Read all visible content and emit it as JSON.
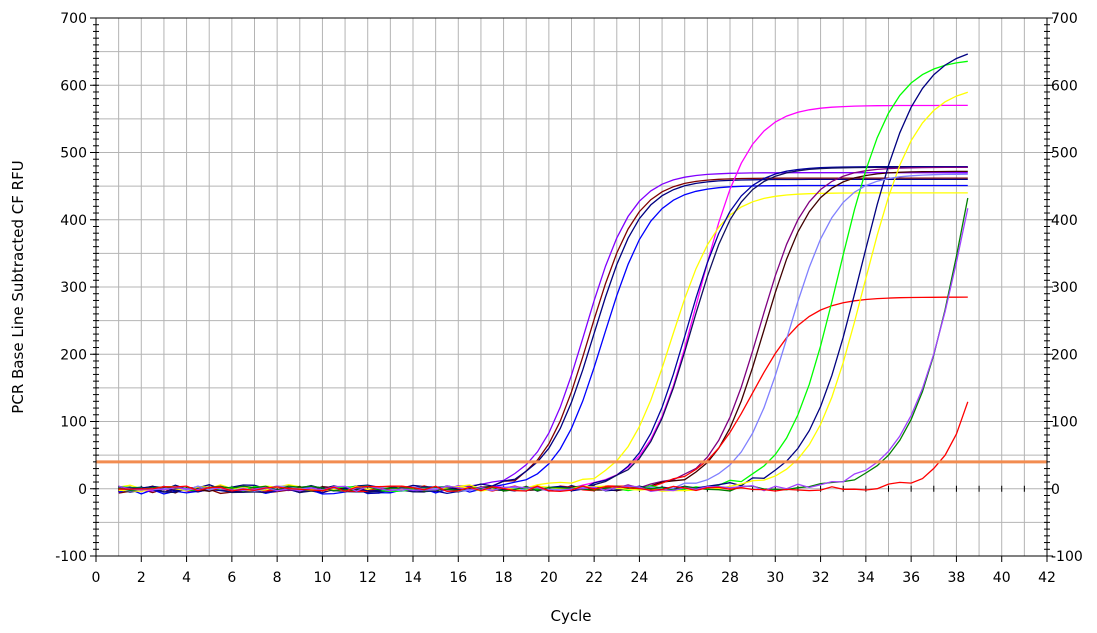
{
  "chart_data": {
    "type": "line",
    "title": "",
    "xlabel": "Cycle",
    "ylabel": "PCR Base Line Subtracted CF RFU",
    "xlim": [
      0,
      42
    ],
    "ylim": [
      -100,
      700
    ],
    "x_ticks": [
      0,
      2,
      4,
      6,
      8,
      10,
      12,
      14,
      16,
      18,
      20,
      22,
      24,
      26,
      28,
      30,
      32,
      34,
      36,
      38,
      40,
      42
    ],
    "y_ticks": [
      -100,
      0,
      100,
      200,
      300,
      400,
      500,
      600,
      700
    ],
    "y_ticks_right": [
      -100,
      0,
      100,
      200,
      300,
      400,
      500,
      600,
      700
    ],
    "grid": true,
    "legend": "none",
    "x_range": [
      1,
      38.5
    ],
    "threshold": {
      "value": 40,
      "color": "#f28c50"
    },
    "series": [
      {
        "color": "#8000ff",
        "base": 0,
        "plateau": 470,
        "midpoint": 21.6,
        "slope": 0.55
      },
      {
        "color": "#800000",
        "base": -3,
        "plateau": 465,
        "midpoint": 21.8,
        "slope": 0.55
      },
      {
        "color": "#000080",
        "base": 2,
        "plateau": 458,
        "midpoint": 22.0,
        "slope": 0.55
      },
      {
        "color": "#0000ff",
        "base": -4,
        "plateau": 455,
        "midpoint": 22.4,
        "slope": 0.55
      },
      {
        "color": "#ff00ff",
        "base": 0,
        "plateau": 570,
        "midpoint": 26.6,
        "slope": 0.52
      },
      {
        "color": "#ffff00",
        "base": 2,
        "plateau": 438,
        "midpoint": 25.4,
        "slope": 0.55
      },
      {
        "color": "#0000a0",
        "base": -3,
        "plateau": 482,
        "midpoint": 26.1,
        "slope": 0.55
      },
      {
        "color": "#101060",
        "base": -2,
        "plateau": 480,
        "midpoint": 26.3,
        "slope": 0.55
      },
      {
        "color": "#800080",
        "base": 0,
        "plateau": 478,
        "midpoint": 29.3,
        "slope": 0.55
      },
      {
        "color": "#400000",
        "base": 0,
        "plateau": 472,
        "midpoint": 29.5,
        "slope": 0.55
      },
      {
        "color": "#ff0000",
        "base": 0,
        "plateau": 285,
        "midpoint": 29.0,
        "slope": 0.5
      },
      {
        "color": "#00ff00",
        "base": 0,
        "plateau": 640,
        "midpoint": 32.8,
        "slope": 0.5
      },
      {
        "color": "#000080",
        "base": 0,
        "plateau": 660,
        "midpoint": 33.8,
        "slope": 0.47
      },
      {
        "color": "#ffff00",
        "base": 0,
        "plateau": 600,
        "midpoint": 33.9,
        "slope": 0.5
      },
      {
        "color": "#8080ff",
        "base": 0,
        "plateau": 468,
        "midpoint": 30.6,
        "slope": 0.55
      },
      {
        "color": "#008000",
        "base": 0,
        "plateau": 900,
        "midpoint": 38.6,
        "slope": 0.45
      },
      {
        "color": "#a040ff",
        "base": 0,
        "plateau": 900,
        "midpoint": 38.7,
        "slope": 0.42
      },
      {
        "color": "#ff0000",
        "base": 0,
        "plateau": 900,
        "midpoint": 40.2,
        "slope": 0.6
      }
    ]
  }
}
